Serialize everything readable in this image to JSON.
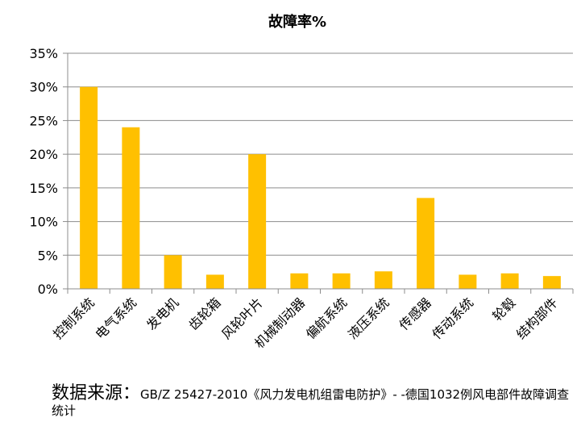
{
  "chart_data": {
    "type": "bar",
    "title": "故障率%",
    "categories": [
      "控制系统",
      "电气系统",
      "发电机",
      "齿轮箱",
      "风轮叶片",
      "机械制动器",
      "偏航系统",
      "液压系统",
      "传感器",
      "传动系统",
      "轮毂",
      "结构部件"
    ],
    "values": [
      30,
      24,
      5,
      2.1,
      20,
      2.3,
      2.3,
      2.6,
      13.5,
      2.1,
      2.3,
      1.9
    ],
    "ylim": [
      0,
      35
    ],
    "yticks": [
      "0%",
      "5%",
      "10%",
      "15%",
      "20%",
      "25%",
      "30%",
      "35%"
    ],
    "bar_color": "#FFC000",
    "grid": true
  },
  "source": {
    "lead": "数据来源：",
    "text": "GB/Z 25427-2010《风力发电机组雷电防护》- -德国1032例风电部件故障调查统计"
  }
}
